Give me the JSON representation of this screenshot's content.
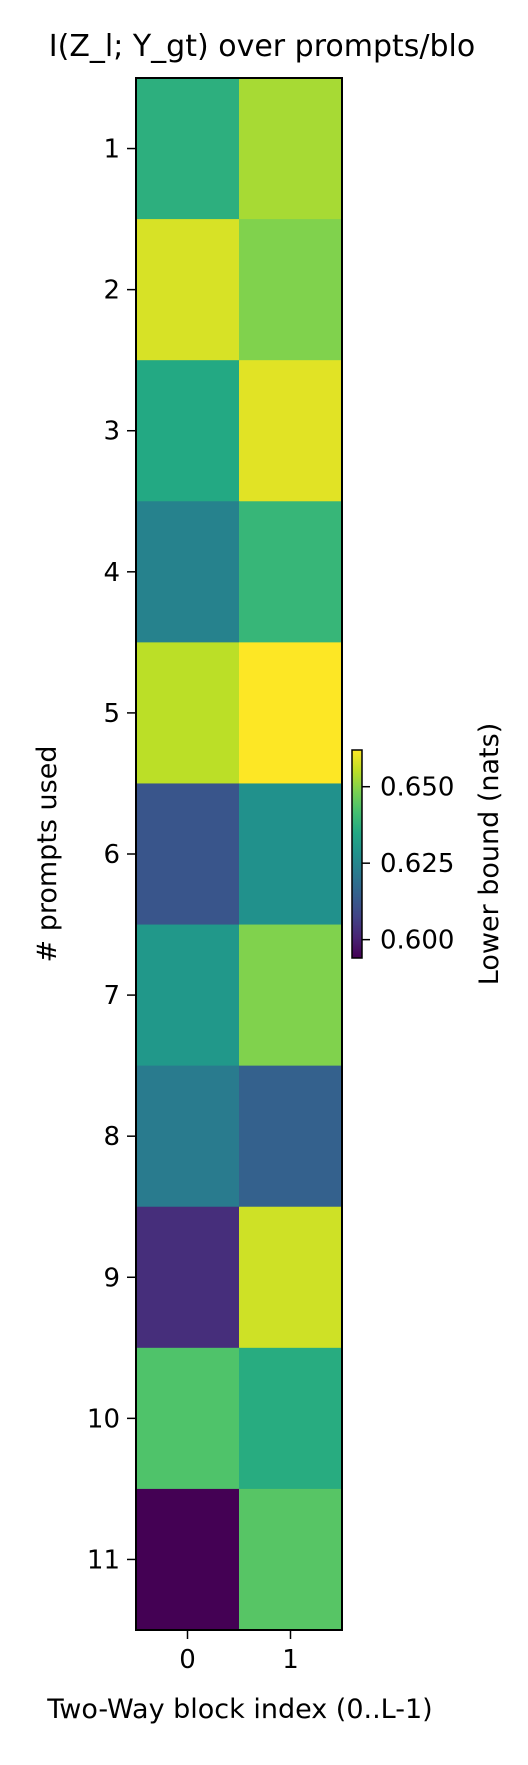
{
  "chart_data": {
    "type": "heatmap",
    "title": "I(Z_l; Y_gt) over prompts/blo",
    "xlabel": "Two-Way block index (0..L-1)",
    "ylabel": "# prompts used",
    "x_categories": [
      "0",
      "1"
    ],
    "y_categories": [
      "1",
      "2",
      "3",
      "4",
      "5",
      "6",
      "7",
      "8",
      "9",
      "10",
      "11"
    ],
    "values": [
      [
        0.637,
        0.653
      ],
      [
        0.658,
        0.649
      ],
      [
        0.635,
        0.659
      ],
      [
        0.624,
        0.639
      ],
      [
        0.655,
        0.662
      ],
      [
        0.612,
        0.628
      ],
      [
        0.63,
        0.649
      ],
      [
        0.622,
        0.615
      ],
      [
        0.603,
        0.657
      ],
      [
        0.643,
        0.636
      ],
      [
        0.594,
        0.644
      ]
    ],
    "colorbar": {
      "label": "Lower bound (nats)",
      "vmin": 0.594,
      "vmax": 0.662,
      "ticks": [
        0.6,
        0.625,
        0.65
      ],
      "tick_labels": [
        "0.600",
        "0.625",
        "0.650"
      ],
      "colormap": "viridis"
    }
  }
}
